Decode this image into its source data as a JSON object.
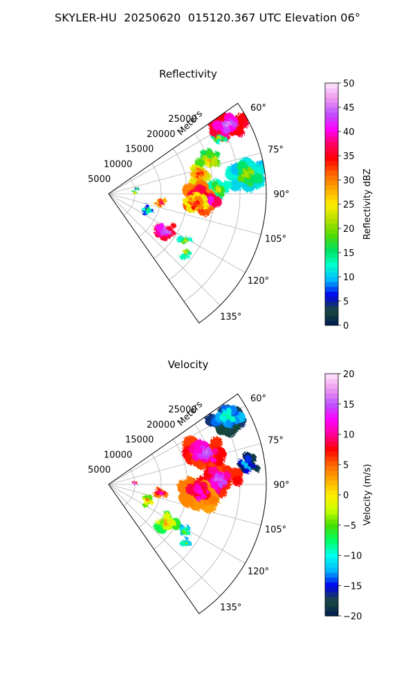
{
  "title": "SKYLER-HU  20250620  015120.367 UTC Elevation 06°",
  "chart_data": [
    {
      "type": "heatmap",
      "projection": "polar-sector",
      "title": "Reflectivity",
      "radial_label": "Meters",
      "radial_ticks": [
        5000,
        10000,
        15000,
        20000,
        25000
      ],
      "radial_range": [
        0,
        30000
      ],
      "azimuth_ticks": [
        "60°",
        "75°",
        "90°",
        "105°",
        "120°",
        "135°"
      ],
      "azimuth_range_deg": [
        55,
        145
      ],
      "grid": true,
      "colorbar": {
        "label": "Reflectivity dBZ",
        "range": [
          0,
          50
        ],
        "ticks": [
          "0",
          "5",
          "10",
          "15",
          "20",
          "25",
          "30",
          "35",
          "40",
          "45",
          "50"
        ],
        "stops": [
          "#001b55",
          "#1a4a3a",
          "#0000ee",
          "#00b7ff",
          "#00ffcc",
          "#00e060",
          "#55dd00",
          "#b8e000",
          "#ffee00",
          "#ffaa00",
          "#ff6600",
          "#ff0000",
          "#ff0066",
          "#ff00ff",
          "#bb55ff",
          "#ee99ee",
          "#ffe6ff"
        ]
      },
      "echoes": [
        {
          "az": 60,
          "r": 26000,
          "value": 44,
          "extent": "large"
        },
        {
          "az": 63,
          "r": 23500,
          "value": 22,
          "extent": "small"
        },
        {
          "az": 72,
          "r": 20000,
          "value": 26,
          "extent": "medium"
        },
        {
          "az": 77,
          "r": 17500,
          "value": 32,
          "extent": "medium"
        },
        {
          "az": 82,
          "r": 26500,
          "value": 20,
          "extent": "large"
        },
        {
          "az": 88,
          "r": 21000,
          "value": 22,
          "extent": "medium"
        },
        {
          "az": 94,
          "r": 18000,
          "value": 40,
          "extent": "large"
        },
        {
          "az": 97,
          "r": 16500,
          "value": 34,
          "extent": "medium"
        },
        {
          "az": 100,
          "r": 10000,
          "value": 36,
          "extent": "small"
        },
        {
          "az": 112,
          "r": 8000,
          "value": 16,
          "extent": "small"
        },
        {
          "az": 124,
          "r": 13000,
          "value": 44,
          "extent": "medium"
        },
        {
          "az": 122,
          "r": 17000,
          "value": 22,
          "extent": "small"
        },
        {
          "az": 127,
          "r": 18500,
          "value": 22,
          "extent": "small"
        },
        {
          "az": 88,
          "r": 5000,
          "value": 22,
          "extent": "tiny"
        },
        {
          "az": 80,
          "r": 5500,
          "value": 14,
          "extent": "tiny"
        }
      ]
    },
    {
      "type": "heatmap",
      "projection": "polar-sector",
      "title": "Velocity",
      "radial_label": "Meters",
      "radial_ticks": [
        5000,
        10000,
        15000,
        20000,
        25000
      ],
      "radial_range": [
        0,
        30000
      ],
      "azimuth_ticks": [
        "60°",
        "75°",
        "90°",
        "105°",
        "120°",
        "135°"
      ],
      "azimuth_range_deg": [
        55,
        145
      ],
      "grid": true,
      "colorbar": {
        "label": "Velocity (m/s)",
        "range": [
          -20,
          20
        ],
        "ticks": [
          "−20",
          "−15",
          "−10",
          "−5",
          "0",
          "5",
          "10",
          "15",
          "20"
        ],
        "stops": [
          "#001b55",
          "#1a4a3a",
          "#0000ee",
          "#00b7ff",
          "#00ffee",
          "#00ff66",
          "#44dd00",
          "#ccff00",
          "#ffee00",
          "#ffaa00",
          "#ff6600",
          "#ff0000",
          "#ff0099",
          "#ff00ff",
          "#bb55ff",
          "#ee99ee",
          "#ffe6ff"
        ]
      },
      "echoes": [
        {
          "az": 60,
          "r": 26000,
          "value": -10,
          "extent": "large"
        },
        {
          "az": 72,
          "r": 19500,
          "value": 14,
          "extent": "large"
        },
        {
          "az": 82,
          "r": 26500,
          "value": -12,
          "extent": "medium"
        },
        {
          "az": 88,
          "r": 21000,
          "value": 14,
          "extent": "large"
        },
        {
          "az": 95,
          "r": 17500,
          "value": 11,
          "extent": "large"
        },
        {
          "az": 100,
          "r": 10000,
          "value": 11,
          "extent": "small"
        },
        {
          "az": 112,
          "r": 8000,
          "value": 3,
          "extent": "small"
        },
        {
          "az": 124,
          "r": 13000,
          "value": 1,
          "extent": "medium"
        },
        {
          "az": 122,
          "r": 17000,
          "value": -5,
          "extent": "small"
        },
        {
          "az": 127,
          "r": 18500,
          "value": -5,
          "extent": "small"
        },
        {
          "az": 88,
          "r": 5000,
          "value": 14,
          "extent": "tiny"
        }
      ]
    }
  ]
}
